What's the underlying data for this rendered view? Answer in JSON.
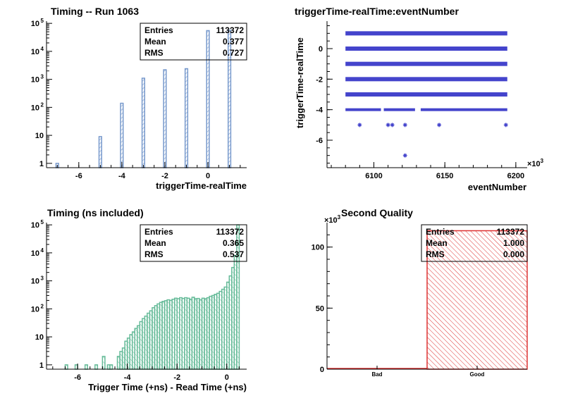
{
  "chart_data": [
    {
      "type": "bar",
      "title": "Timing -- Run 1063",
      "xlabel": "triggerTime-realTime",
      "ylabel": "",
      "xlim": [
        -7.5,
        1.8
      ],
      "ylim": [
        0.7,
        120000
      ],
      "yscale": "log",
      "grid": false,
      "color": "#7799cc",
      "xticks": [
        {
          "value": -6,
          "label": "-6"
        },
        {
          "value": -4,
          "label": "-4"
        },
        {
          "value": -2,
          "label": "-2"
        },
        {
          "value": 0,
          "label": "0"
        }
      ],
      "yticks": [
        {
          "value": 1,
          "label": "1",
          "exp": ""
        },
        {
          "value": 10,
          "label": "10",
          "exp": ""
        },
        {
          "value": 100,
          "label": "10",
          "exp": "2"
        },
        {
          "value": 1000,
          "label": "10",
          "exp": "3"
        },
        {
          "value": 10000,
          "label": "10",
          "exp": "4"
        },
        {
          "value": 100000,
          "label": "10",
          "exp": "5"
        }
      ],
      "bars": [
        {
          "x": -7,
          "y": 1
        },
        {
          "x": -5,
          "y": 9
        },
        {
          "x": -4,
          "y": 140
        },
        {
          "x": -3,
          "y": 1100
        },
        {
          "x": -2,
          "y": 2200
        },
        {
          "x": -1,
          "y": 2400
        },
        {
          "x": 0,
          "y": 55000
        },
        {
          "x": 1,
          "y": 57000
        }
      ],
      "stats": {
        "rows": [
          {
            "label": "Entries",
            "value": "113372"
          },
          {
            "label": "Mean",
            "value": "0.377"
          },
          {
            "label": "RMS",
            "value": "0.727"
          }
        ]
      }
    },
    {
      "type": "scatter",
      "title": "triggerTime-realTime:eventNumber",
      "xlabel": "eventNumber",
      "ylabel": "triggerTime-realTime",
      "xlim": [
        6067,
        6208
      ],
      "ylim": [
        -7.8,
        1.8
      ],
      "xmultiplier_base": "×10",
      "xmultiplier_exp": "3",
      "grid": false,
      "color": "#4444cc",
      "xticks": [
        {
          "value": 6100,
          "label": "6100"
        },
        {
          "value": 6150,
          "label": "6150"
        },
        {
          "value": 6200,
          "label": "6200"
        }
      ],
      "yticks": [
        {
          "value": 0,
          "label": "0"
        },
        {
          "value": -2,
          "label": "-2"
        },
        {
          "value": -4,
          "label": "-4"
        },
        {
          "value": -6,
          "label": "-6"
        }
      ],
      "bands": [
        {
          "y": 1,
          "x_start": 6080,
          "x_end": 6194
        },
        {
          "y": 0,
          "x_start": 6080,
          "x_end": 6194
        },
        {
          "y": -1,
          "x_start": 6080,
          "x_end": 6194
        },
        {
          "y": -2,
          "x_start": 6080,
          "x_end": 6194
        },
        {
          "y": -3,
          "x_start": 6080,
          "x_end": 6194
        }
      ],
      "segments_y_minus4": [
        {
          "x_start": 6080,
          "x_end": 6105
        },
        {
          "x_start": 6107,
          "x_end": 6129
        },
        {
          "x_start": 6133,
          "x_end": 6194
        }
      ],
      "points": [
        {
          "x": 6090,
          "y": -5
        },
        {
          "x": 6110,
          "y": -5
        },
        {
          "x": 6113,
          "y": -5
        },
        {
          "x": 6122,
          "y": -5
        },
        {
          "x": 6146,
          "y": -5
        },
        {
          "x": 6193,
          "y": -5
        },
        {
          "x": 6122,
          "y": -7
        }
      ]
    },
    {
      "type": "bar",
      "title": "Timing (ns included)",
      "xlabel": "Trigger Time (+ns) - Read Time (+ns)",
      "ylabel": "",
      "xlim": [
        -7.25,
        0.8
      ],
      "ylim": [
        0.7,
        120000
      ],
      "yscale": "log",
      "grid": false,
      "color": "#66bb99",
      "xticks": [
        {
          "value": -6,
          "label": "-6"
        },
        {
          "value": -4,
          "label": "-4"
        },
        {
          "value": -2,
          "label": "-2"
        },
        {
          "value": 0,
          "label": "0"
        }
      ],
      "yticks": [
        {
          "value": 1,
          "label": "1",
          "exp": ""
        },
        {
          "value": 10,
          "label": "10",
          "exp": ""
        },
        {
          "value": 100,
          "label": "10",
          "exp": "2"
        },
        {
          "value": 1000,
          "label": "10",
          "exp": "3"
        },
        {
          "value": 10000,
          "label": "10",
          "exp": "4"
        },
        {
          "value": 100000,
          "label": "10",
          "exp": "5"
        }
      ],
      "histogram": [
        {
          "x0": -6.5,
          "x1": -6.4,
          "y": 1
        },
        {
          "x0": -6.1,
          "x1": -6.0,
          "y": 1
        },
        {
          "x0": -5.7,
          "x1": -5.6,
          "y": 1
        },
        {
          "x0": -5.3,
          "x1": -5.2,
          "y": 1
        },
        {
          "x0": -5.0,
          "x1": -4.9,
          "y": 2
        },
        {
          "x0": -4.8,
          "x1": -4.7,
          "y": 1
        },
        {
          "x0": -4.7,
          "x1": -4.6,
          "y": 1
        },
        {
          "x0": -4.4,
          "x1": -4.3,
          "y": 2
        },
        {
          "x0": -4.3,
          "x1": -4.2,
          "y": 3
        },
        {
          "x0": -4.2,
          "x1": -4.1,
          "y": 4
        },
        {
          "x0": -4.1,
          "x1": -4.0,
          "y": 7
        },
        {
          "x0": -4.0,
          "x1": -3.9,
          "y": 9
        },
        {
          "x0": -3.9,
          "x1": -3.8,
          "y": 12
        },
        {
          "x0": -3.8,
          "x1": -3.7,
          "y": 15
        },
        {
          "x0": -3.7,
          "x1": -3.6,
          "y": 20
        },
        {
          "x0": -3.6,
          "x1": -3.5,
          "y": 25
        },
        {
          "x0": -3.5,
          "x1": -3.4,
          "y": 35
        },
        {
          "x0": -3.4,
          "x1": -3.3,
          "y": 45
        },
        {
          "x0": -3.3,
          "x1": -3.2,
          "y": 55
        },
        {
          "x0": -3.2,
          "x1": -3.1,
          "y": 70
        },
        {
          "x0": -3.1,
          "x1": -3.0,
          "y": 85
        },
        {
          "x0": -3.0,
          "x1": -2.9,
          "y": 110
        },
        {
          "x0": -2.9,
          "x1": -2.8,
          "y": 130
        },
        {
          "x0": -2.8,
          "x1": -2.7,
          "y": 150
        },
        {
          "x0": -2.7,
          "x1": -2.6,
          "y": 170
        },
        {
          "x0": -2.6,
          "x1": -2.5,
          "y": 185
        },
        {
          "x0": -2.5,
          "x1": -2.4,
          "y": 195
        },
        {
          "x0": -2.4,
          "x1": -2.3,
          "y": 210
        },
        {
          "x0": -2.3,
          "x1": -2.2,
          "y": 200
        },
        {
          "x0": -2.2,
          "x1": -2.1,
          "y": 220
        },
        {
          "x0": -2.1,
          "x1": -2.0,
          "y": 240
        },
        {
          "x0": -2.0,
          "x1": -1.9,
          "y": 230
        },
        {
          "x0": -1.9,
          "x1": -1.8,
          "y": 250
        },
        {
          "x0": -1.8,
          "x1": -1.7,
          "y": 235
        },
        {
          "x0": -1.7,
          "x1": -1.6,
          "y": 250
        },
        {
          "x0": -1.6,
          "x1": -1.5,
          "y": 240
        },
        {
          "x0": -1.5,
          "x1": -1.4,
          "y": 220
        },
        {
          "x0": -1.4,
          "x1": -1.3,
          "y": 260
        },
        {
          "x0": -1.3,
          "x1": -1.2,
          "y": 230
        },
        {
          "x0": -1.2,
          "x1": -1.1,
          "y": 235
        },
        {
          "x0": -1.1,
          "x1": -1.0,
          "y": 210
        },
        {
          "x0": -1.0,
          "x1": -0.9,
          "y": 240
        },
        {
          "x0": -0.9,
          "x1": -0.8,
          "y": 230
        },
        {
          "x0": -0.8,
          "x1": -0.7,
          "y": 250
        },
        {
          "x0": -0.7,
          "x1": -0.6,
          "y": 280
        },
        {
          "x0": -0.6,
          "x1": -0.5,
          "y": 300
        },
        {
          "x0": -0.5,
          "x1": -0.4,
          "y": 330
        },
        {
          "x0": -0.4,
          "x1": -0.3,
          "y": 360
        },
        {
          "x0": -0.3,
          "x1": -0.2,
          "y": 420
        },
        {
          "x0": -0.2,
          "x1": -0.1,
          "y": 500
        },
        {
          "x0": -0.1,
          "x1": 0.0,
          "y": 600
        },
        {
          "x0": 0.0,
          "x1": 0.1,
          "y": 900
        },
        {
          "x0": 0.1,
          "x1": 0.2,
          "y": 1500
        },
        {
          "x0": 0.2,
          "x1": 0.3,
          "y": 3000
        },
        {
          "x0": 0.3,
          "x1": 0.4,
          "y": 8000
        },
        {
          "x0": 0.4,
          "x1": 0.5,
          "y": 100000
        }
      ],
      "stats": {
        "rows": [
          {
            "label": "Entries",
            "value": "113372"
          },
          {
            "label": "Mean",
            "value": "0.365"
          },
          {
            "label": "RMS",
            "value": "0.537"
          }
        ]
      }
    },
    {
      "type": "bar",
      "title": "Second Quality",
      "xlabel": "",
      "ylabel": "",
      "ylim": [
        0,
        120
      ],
      "ymultiplier_base": "×10",
      "ymultiplier_exp": "3",
      "grid": false,
      "color": "#dd3333",
      "categories": [
        "Bad",
        "Good"
      ],
      "values": [
        0,
        113.372
      ],
      "yticks": [
        {
          "value": 0,
          "label": "0"
        },
        {
          "value": 50,
          "label": "50"
        },
        {
          "value": 100,
          "label": "100"
        }
      ],
      "stats": {
        "rows": [
          {
            "label": "Entries",
            "value": "113372"
          },
          {
            "label": "Mean",
            "value": "1.000"
          },
          {
            "label": "RMS",
            "value": "0.000"
          }
        ]
      }
    }
  ]
}
